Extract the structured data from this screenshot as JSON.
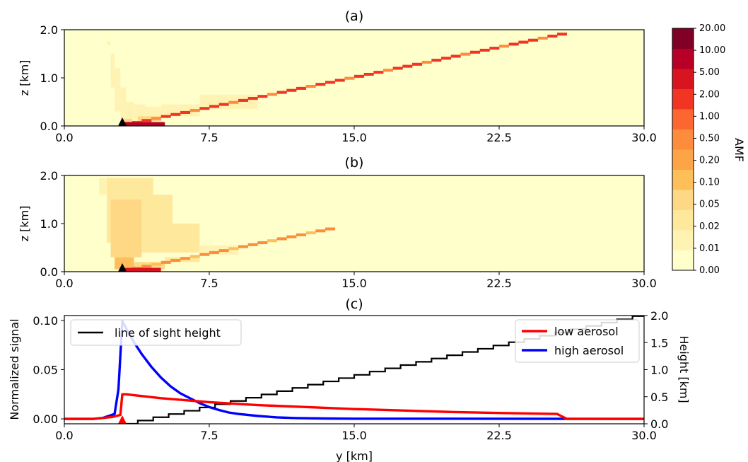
{
  "chart_data": [
    {
      "type": "heatmap",
      "panel": "(a)",
      "title": "(a)",
      "xlabel": "",
      "ylabel": "z [km]",
      "xlim": [
        0,
        30
      ],
      "ylim": [
        0,
        2
      ],
      "xticks": [
        "0.0",
        "7.5",
        "15.0",
        "22.5",
        "30.0"
      ],
      "yticks": [
        "0.0",
        "1.0",
        "2.0"
      ],
      "triangle_marker": {
        "x": 3.0,
        "z": 0.0,
        "color": "#000000"
      },
      "cells": [
        {
          "x0": 2.2,
          "x1": 2.4,
          "z0": 1.68,
          "z1": 1.76,
          "level": 1
        },
        {
          "x0": 2.4,
          "x1": 2.6,
          "z0": 0.8,
          "z1": 1.5,
          "level": 1
        },
        {
          "x0": 2.6,
          "x1": 2.9,
          "z0": 0.3,
          "z1": 1.2,
          "level": 1
        },
        {
          "x0": 2.9,
          "x1": 3.2,
          "z0": 0.1,
          "z1": 0.8,
          "level": 1
        },
        {
          "x0": 3.2,
          "x1": 3.6,
          "z0": 0.1,
          "z1": 0.5,
          "level": 1
        },
        {
          "x0": 3.6,
          "x1": 4.2,
          "z0": 0.1,
          "z1": 0.45,
          "level": 1
        },
        {
          "x0": 4.2,
          "x1": 5.0,
          "z0": 0.15,
          "z1": 0.4,
          "level": 1
        },
        {
          "x0": 5.0,
          "x1": 7.0,
          "z0": 0.2,
          "z1": 0.45,
          "level": 1
        },
        {
          "x0": 7.0,
          "x1": 10.0,
          "z0": 0.35,
          "z1": 0.65,
          "level": 1
        },
        {
          "x0": 3.0,
          "x1": 3.5,
          "z0": 0.05,
          "z1": 0.15,
          "level": 3
        },
        {
          "x0": 3.8,
          "x1": 5.0,
          "z0": 0.1,
          "z1": 0.2,
          "level": 3
        },
        {
          "x0": 3.0,
          "x1": 3.8,
          "z0": 0.0,
          "z1": 0.08,
          "level": 10
        },
        {
          "x0": 3.8,
          "x1": 5.0,
          "z0": 0.0,
          "z1": 0.08,
          "level": 9
        }
      ],
      "ray": {
        "x_start": 3.0,
        "x_end": 26.0,
        "z_start": 0.0,
        "z_end": 1.92,
        "step_x": 0.5,
        "level": 8,
        "alt_level": 6
      },
      "ray_lower": {
        "x_start": 3.0,
        "x_end": 5.2,
        "level": 10
      }
    },
    {
      "type": "heatmap",
      "panel": "(b)",
      "title": "(b)",
      "xlabel": "",
      "ylabel": "z [km]",
      "xlim": [
        0,
        30
      ],
      "ylim": [
        0,
        2
      ],
      "xticks": [
        "0.0",
        "7.5",
        "15.0",
        "22.5",
        "30.0"
      ],
      "yticks": [
        "0.0",
        "1.0",
        "2.0"
      ],
      "triangle_marker": {
        "x": 3.0,
        "z": 0.0,
        "color": "#000000"
      },
      "cells": [
        {
          "x0": 1.8,
          "x1": 2.6,
          "z0": 1.6,
          "z1": 1.95,
          "level": 1
        },
        {
          "x0": 2.2,
          "x1": 4.6,
          "z0": 0.6,
          "z1": 1.95,
          "level": 2
        },
        {
          "x0": 2.4,
          "x1": 4.0,
          "z0": 0.3,
          "z1": 1.5,
          "level": 3
        },
        {
          "x0": 4.0,
          "x1": 5.6,
          "z0": 0.4,
          "z1": 1.6,
          "level": 2
        },
        {
          "x0": 5.6,
          "x1": 7.0,
          "z0": 0.4,
          "z1": 1.0,
          "level": 2
        },
        {
          "x0": 7.0,
          "x1": 9.0,
          "z0": 0.35,
          "z1": 0.55,
          "level": 1
        },
        {
          "x0": 2.6,
          "x1": 3.6,
          "z0": 0.05,
          "z1": 0.3,
          "level": 4
        },
        {
          "x0": 3.6,
          "x1": 5.2,
          "z0": 0.05,
          "z1": 0.2,
          "level": 3
        },
        {
          "x0": 5.2,
          "x1": 7.0,
          "z0": 0.2,
          "z1": 0.3,
          "level": 2
        }
      ],
      "ray": {
        "x_start": 3.0,
        "x_end": 13.8,
        "z_start": 0.0,
        "z_end": 0.9,
        "step_x": 0.5,
        "level": 6,
        "alt_level": 4
      },
      "ray_lower": {
        "x_start": 3.0,
        "x_end": 5.0,
        "level": 9
      }
    },
    {
      "type": "line",
      "panel": "(c)",
      "title": "(c)",
      "xlabel": "y [km]",
      "ylabel": "Normalized signal",
      "y2label": "Height [km]",
      "xlim": [
        0,
        30
      ],
      "ylim": [
        -0.005,
        0.105
      ],
      "y2lim": [
        0,
        2
      ],
      "xticks": [
        "0.0",
        "7.5",
        "15.0",
        "22.5",
        "30.0"
      ],
      "yticks": [
        "0.00",
        "0.05",
        "0.10"
      ],
      "y2ticks": [
        "0.0",
        "0.5",
        "1.0",
        "1.5",
        "2.0"
      ],
      "legend_left": {
        "position": "upper-left",
        "entries": [
          {
            "name": "line of sight height",
            "color": "#000000"
          }
        ]
      },
      "legend_right": {
        "position": "upper-right",
        "entries": [
          {
            "name": "low aerosol",
            "color": "#ff0000"
          },
          {
            "name": "high aerosol",
            "color": "#0000ff"
          }
        ]
      },
      "triangle_marker": {
        "x": 3.0,
        "y": 0.0,
        "color": "#ff0000"
      },
      "series": [
        {
          "name": "low aerosol",
          "color": "#ff0000",
          "axis": "left",
          "x": [
            0,
            1.5,
            2.5,
            2.9,
            3.0,
            3.2,
            5.0,
            7.5,
            10.0,
            12.5,
            15.0,
            17.5,
            20.0,
            22.5,
            25.5,
            26.0,
            30.0
          ],
          "y": [
            0.0,
            0.0,
            0.002,
            0.004,
            0.025,
            0.025,
            0.021,
            0.017,
            0.014,
            0.012,
            0.01,
            0.0085,
            0.007,
            0.006,
            0.005,
            0.0,
            0.0
          ]
        },
        {
          "name": "high aerosol",
          "color": "#0000ff",
          "axis": "left",
          "x": [
            0,
            1.5,
            2.0,
            2.6,
            2.8,
            3.0,
            3.2,
            3.6,
            4.0,
            4.5,
            5.0,
            5.5,
            6.0,
            6.5,
            7.0,
            7.5,
            8.0,
            8.5,
            9.0,
            10.0,
            11.0,
            12.0,
            13.5,
            15.0,
            30.0
          ],
          "y": [
            0.0,
            0.0,
            0.001,
            0.005,
            0.03,
            0.0995,
            0.092,
            0.078,
            0.066,
            0.053,
            0.042,
            0.033,
            0.026,
            0.021,
            0.016,
            0.012,
            0.009,
            0.0065,
            0.005,
            0.003,
            0.0015,
            0.0008,
            0.0004,
            0.0002,
            0.0
          ]
        },
        {
          "name": "line of sight height",
          "color": "#000000",
          "axis": "right",
          "x_start": 3.0,
          "x_end": 30.0,
          "z_start": 0.0,
          "z_end": 2.05,
          "step_x": 0.8,
          "x_before": [
            1.5,
            3.0
          ]
        }
      ]
    }
  ],
  "colorbar": {
    "label": "AMF",
    "levels": [
      "0.00",
      "0.01",
      "0.02",
      "0.05",
      "0.10",
      "0.20",
      "0.50",
      "1.00",
      "2.00",
      "5.00",
      "10.00",
      "20.00"
    ],
    "colors": [
      "#ffffcc",
      "#fff3b4",
      "#fee89c",
      "#fed885",
      "#febf5a",
      "#fda447",
      "#fd8d3c",
      "#fc6731",
      "#f03523",
      "#d7141f",
      "#b80026",
      "#800026"
    ]
  }
}
